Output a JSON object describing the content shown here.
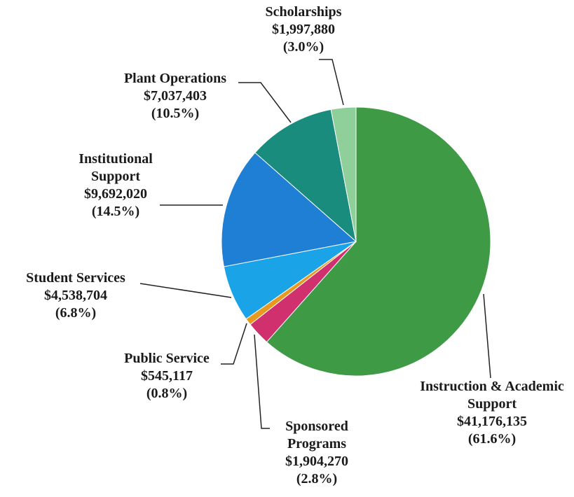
{
  "chart_data": {
    "type": "pie",
    "categories": [
      "Instruction & Academic Support",
      "Sponsored Programs",
      "Public Service",
      "Student Services",
      "Institutional Support",
      "Plant Operations",
      "Scholarships"
    ],
    "values": [
      41176135,
      1904270,
      545117,
      4538704,
      9692020,
      7037403,
      1997880
    ],
    "value_labels": [
      "$41,176,135",
      "$1,904,270",
      "$545,117",
      "$4,538,704",
      "$9,692,020",
      "$7,037,403",
      "$1,997,880"
    ],
    "percentages": [
      61.6,
      2.8,
      0.8,
      6.8,
      14.5,
      10.5,
      3.0
    ],
    "percentage_labels": [
      "(61.6%)",
      "(2.8%)",
      "(0.8%)",
      "(6.8%)",
      "(14.5%)",
      "(10.5%)",
      "(3.0%)"
    ],
    "colors": [
      "#3f9a45",
      "#d0306e",
      "#e89a20",
      "#1aa3e6",
      "#1f7fd4",
      "#1a8c7e",
      "#8fcf9a"
    ]
  }
}
